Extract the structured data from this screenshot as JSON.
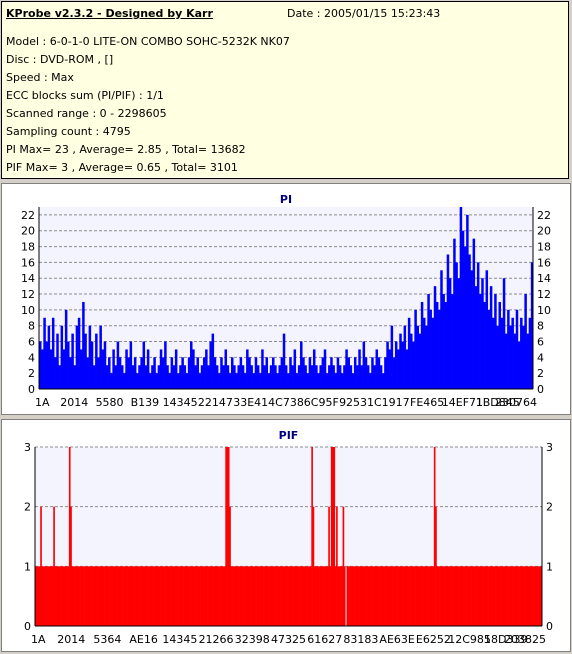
{
  "info": {
    "app_title": "KProbe v2.3.2 - Designed by Karr",
    "date": "Date : 2005/01/15 15:23:43",
    "lines": [
      "Model : 6-0-1-0 LITE-ON COMBO SOHC-5232K NK07",
      "Disc : DVD-ROM ,  []",
      "Speed : Max",
      "ECC blocks sum (PI/PIF) : 1/1",
      "Scanned range : 0 - 2298605",
      "Sampling count : 4795",
      "PI Max= 23 , Average= 2.85 , Total= 13682",
      "PIF Max= 3 , Average= 0.65 , Total= 3101"
    ]
  },
  "chart_data": [
    {
      "type": "bar",
      "title": "PI",
      "color": "#0000ff",
      "ylim": [
        0,
        23
      ],
      "yticks": [
        0,
        2,
        4,
        6,
        8,
        10,
        12,
        14,
        16,
        18,
        20,
        22
      ],
      "grid": "horizontal dashed",
      "x_tick_labels": [
        "1A",
        "2014",
        "5580",
        "B139",
        "14345",
        "22147",
        "33E41",
        "4C738",
        "6C95F",
        "92531",
        "C1917",
        "FE465",
        "14EF71",
        "1BD845",
        "230764"
      ],
      "series": [
        {
          "values": [
            6,
            5,
            9,
            6,
            8,
            5,
            9,
            4,
            7,
            3,
            8,
            5,
            10,
            6,
            4,
            7,
            3,
            8,
            9,
            5,
            11,
            7,
            4,
            8,
            6,
            3,
            7,
            4,
            8,
            5,
            6,
            3,
            4,
            2,
            5,
            3,
            6,
            4,
            3,
            2,
            5,
            4,
            6,
            3,
            4,
            2,
            3,
            4,
            6,
            3,
            5,
            2,
            3,
            4,
            2,
            3,
            5,
            4,
            6,
            3,
            2,
            4,
            3,
            5,
            2,
            3,
            4,
            3,
            2,
            4,
            6,
            5,
            3,
            4,
            2,
            3,
            4,
            5,
            3,
            6,
            7,
            4,
            3,
            2,
            4,
            3,
            5,
            3,
            2,
            4,
            3,
            2,
            3,
            4,
            3,
            2,
            5,
            4,
            3,
            2,
            4,
            3,
            2,
            5,
            3,
            4,
            2,
            3,
            4,
            3,
            2,
            3,
            4,
            7,
            3,
            2,
            4,
            3,
            5,
            2,
            3,
            6,
            4,
            3,
            2,
            4,
            3,
            5,
            3,
            2,
            3,
            4,
            5,
            2,
            3,
            4,
            3,
            2,
            4,
            3,
            2,
            3,
            5,
            4,
            3,
            2,
            4,
            3,
            5,
            3,
            6,
            4,
            3,
            2,
            4,
            3,
            5,
            4,
            3,
            2,
            4,
            6,
            5,
            8,
            4,
            6,
            5,
            7,
            6,
            8,
            5,
            9,
            7,
            6,
            10,
            8,
            7,
            11,
            9,
            8,
            12,
            10,
            9,
            13,
            11,
            10,
            15,
            12,
            11,
            17,
            14,
            12,
            19,
            16,
            14,
            23,
            20,
            18,
            22,
            17,
            15,
            19,
            13,
            16,
            12,
            14,
            11,
            15,
            10,
            13,
            9,
            12,
            8,
            11,
            9,
            14,
            7,
            10,
            8,
            9,
            7,
            10,
            6,
            9,
            8,
            12,
            7,
            9,
            16
          ]
        }
      ]
    },
    {
      "type": "bar",
      "title": "PIF",
      "color": "#ff0000",
      "ylim": [
        0,
        3
      ],
      "yticks": [
        0,
        1,
        2,
        3
      ],
      "grid": "horizontal dashed",
      "x_tick_labels": [
        "1A",
        "2014",
        "5364",
        "AE16",
        "14345",
        "21266",
        "32398",
        "47325",
        "61627",
        "83183",
        "AE63E",
        "E6252",
        "12C985",
        "18D339",
        "203825"
      ],
      "series": [
        {
          "values": [
            1,
            1,
            1,
            1,
            2,
            1,
            1,
            1,
            1,
            1,
            1,
            1,
            1,
            1,
            2,
            1,
            1,
            1,
            1,
            1,
            1,
            1,
            1,
            1,
            1,
            1,
            3,
            2,
            1,
            1,
            1,
            1,
            1,
            1,
            1,
            1,
            1,
            1,
            1,
            1,
            1,
            1,
            1,
            1,
            1,
            1,
            1,
            1,
            1,
            1,
            1,
            1,
            1,
            1,
            1,
            1,
            1,
            1,
            1,
            1,
            1,
            1,
            1,
            1,
            1,
            1,
            1,
            1,
            1,
            1,
            1,
            1,
            1,
            1,
            1,
            1,
            1,
            1,
            1,
            1,
            1,
            1,
            1,
            1,
            1,
            1,
            1,
            1,
            1,
            1,
            1,
            1,
            1,
            1,
            1,
            1,
            1,
            1,
            1,
            1,
            1,
            1,
            1,
            1,
            1,
            1,
            1,
            1,
            1,
            1,
            1,
            1,
            1,
            1,
            1,
            1,
            1,
            1,
            1,
            1,
            1,
            1,
            1,
            1,
            1,
            1,
            1,
            1,
            1,
            1,
            1,
            1,
            1,
            1,
            1,
            1,
            1,
            1,
            1,
            1,
            1,
            1,
            1,
            1,
            1,
            1,
            3,
            3,
            3,
            2,
            1,
            1,
            1,
            1,
            1,
            1,
            1,
            1,
            1,
            1,
            1,
            1,
            1,
            1,
            1,
            1,
            1,
            1,
            1,
            1,
            1,
            1,
            1,
            1,
            1,
            1,
            1,
            1,
            1,
            1,
            1,
            1,
            1,
            1,
            1,
            1,
            1,
            1,
            1,
            1,
            1,
            1,
            1,
            1,
            1,
            1,
            1,
            1,
            1,
            1,
            1,
            1,
            1,
            1,
            1,
            1,
            1,
            1,
            1,
            1,
            1,
            1,
            3,
            2,
            1,
            1,
            1,
            1,
            1,
            1,
            1,
            1,
            1,
            1,
            1,
            2,
            1,
            3,
            3,
            3,
            1,
            2,
            1,
            1,
            1,
            1,
            2,
            1,
            0,
            1,
            1,
            1,
            1,
            1,
            1,
            1,
            1,
            1,
            1,
            1,
            1,
            1,
            1,
            1,
            1,
            1,
            1,
            1,
            1,
            1,
            1,
            1,
            1,
            1,
            1,
            1,
            1,
            1,
            1,
            1,
            1,
            1,
            1,
            1,
            1,
            1,
            1,
            1,
            1,
            1,
            1,
            1,
            1,
            1,
            1,
            1,
            1,
            1,
            1,
            1,
            1,
            1,
            1,
            1,
            1,
            1,
            1,
            1,
            1,
            1,
            1,
            1,
            1,
            1,
            1,
            1,
            3,
            2,
            1,
            1,
            1,
            1,
            1,
            1,
            1,
            1,
            1,
            1,
            1,
            1,
            1,
            1,
            1,
            1,
            1,
            1,
            1,
            1,
            1,
            1,
            1,
            1,
            1,
            1,
            1,
            1,
            1,
            1,
            1,
            1,
            1,
            1,
            1,
            1,
            1,
            1,
            1,
            1,
            1,
            1,
            1,
            1,
            1,
            1,
            1,
            1,
            1,
            1,
            1,
            1,
            1,
            1,
            1,
            1,
            1,
            1,
            1,
            1,
            1,
            1,
            1,
            1,
            1,
            1,
            1,
            1,
            1,
            1,
            1,
            1,
            1,
            1,
            1,
            1,
            1,
            1,
            1,
            1,
            1
          ]
        }
      ]
    }
  ]
}
